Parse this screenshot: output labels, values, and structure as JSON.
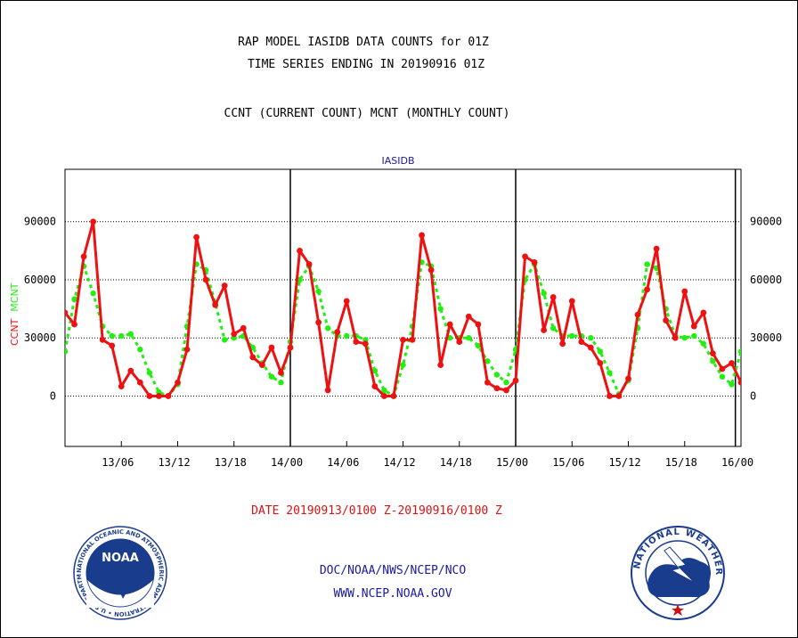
{
  "header": {
    "line1": "RAP MODEL IASIDB DATA COUNTS for 01Z",
    "line2": "TIME SERIES ENDING IN 20190916 01Z",
    "line3": "CCNT (CURRENT COUNT) MCNT (MONTHLY COUNT)"
  },
  "footer": {
    "date_range": "DATE 20190913/0100 Z-20190916/0100 Z",
    "org": "DOC/NOAA/NWS/NCEP/NCO",
    "url": "WWW.NCEP.NOAA.GOV"
  },
  "logos": {
    "noaa_text": "NOAA",
    "noaa_ring_text": "NATIONAL OCEANIC AND ATMOSPHERIC ADMINISTRATION • U.S. DEPARTMENT OF COMMERCE •",
    "nws_ring_text": "NATIONAL WEATHER SERVICE"
  },
  "colors": {
    "ccnt": "#ee1111",
    "mcnt": "#22ee11",
    "title_blue": "#1a1aa0",
    "date_red": "#dd1111"
  },
  "chart_data": {
    "type": "line",
    "title": "IASIDB",
    "ylabel_left": [
      "CCNT",
      "MCNT"
    ],
    "yticks": [
      0,
      30000,
      60000,
      90000
    ],
    "ytick_labels": [
      "0",
      "30000",
      "60000",
      "90000"
    ],
    "ylim": [
      -26000,
      117000
    ],
    "x_unit": "hours since 13/00",
    "xlim": [
      0,
      72
    ],
    "xticks": [
      6,
      12,
      18,
      24,
      30,
      36,
      42,
      48,
      54,
      60,
      66,
      72
    ],
    "xtick_labels": [
      "13/06",
      "13/12",
      "13/18",
      "14/00",
      "14/06",
      "14/12",
      "14/18",
      "15/00",
      "15/06",
      "15/12",
      "15/18",
      "16/00"
    ],
    "day_boundaries": [
      24,
      48,
      71.4
    ],
    "grid": true,
    "series": [
      {
        "name": "CCNT",
        "color": "#ee1111",
        "x": [
          0,
          1,
          2,
          3,
          4,
          5,
          6,
          7,
          8,
          9,
          10,
          11,
          12,
          13,
          14,
          15,
          16,
          17,
          18,
          19,
          20,
          21,
          22,
          23,
          24,
          25,
          26,
          27,
          28,
          29,
          30,
          31,
          32,
          33,
          34,
          35,
          36,
          37,
          38,
          39,
          40,
          41,
          42,
          43,
          44,
          45,
          46,
          47,
          48,
          49,
          50,
          51,
          52,
          53,
          54,
          55,
          56,
          57,
          58,
          59,
          60,
          61,
          62,
          63,
          64,
          65,
          66,
          67,
          68,
          69,
          70,
          71,
          72
        ],
        "values": [
          43000,
          37000,
          72000,
          90000,
          29000,
          26000,
          5000,
          13000,
          7000,
          0,
          0,
          0,
          7000,
          24000,
          82000,
          60000,
          47000,
          57000,
          32000,
          35000,
          20000,
          16000,
          25000,
          12000,
          25000,
          75000,
          68000,
          38000,
          3000,
          33000,
          49000,
          28000,
          27000,
          5000,
          0,
          0,
          29000,
          29000,
          83000,
          65000,
          16000,
          37000,
          28000,
          41000,
          37000,
          7000,
          4000,
          3000,
          8000,
          72000,
          69000,
          34000,
          51000,
          27000,
          49000,
          28000,
          25000,
          17000,
          0,
          0,
          9000,
          42000,
          55000,
          76000,
          39000,
          30000,
          54000,
          36000,
          43000,
          22000,
          14000,
          17000,
          7000
        ]
      },
      {
        "name": "MCNT",
        "color": "#22ee11",
        "x": [
          0,
          1,
          2,
          3,
          4,
          5,
          6,
          7,
          8,
          9,
          10,
          11,
          12,
          13,
          14,
          15,
          16,
          17,
          18,
          19,
          20,
          21,
          22,
          23,
          24,
          25,
          26,
          27,
          28,
          29,
          30,
          31,
          32,
          33,
          34,
          35,
          36,
          37,
          38,
          39,
          40,
          41,
          42,
          43,
          44,
          45,
          46,
          47,
          48,
          49,
          50,
          51,
          52,
          53,
          54,
          55,
          56,
          57,
          58,
          59,
          60,
          61,
          62,
          63,
          64,
          65,
          66,
          67,
          68,
          69,
          70,
          71,
          72
        ],
        "values": [
          23000,
          50000,
          67000,
          53000,
          36000,
          31000,
          31000,
          32000,
          24000,
          12000,
          2000,
          0,
          6000,
          36000,
          68000,
          65000,
          48000,
          29000,
          30000,
          31000,
          25000,
          17000,
          10000,
          7000,
          28000,
          60000,
          67000,
          54000,
          35000,
          31000,
          31000,
          31000,
          29000,
          13000,
          3000,
          0,
          16000,
          36000,
          69000,
          67000,
          45000,
          30000,
          30000,
          30000,
          26000,
          18000,
          11000,
          7000,
          24000,
          60000,
          68000,
          53000,
          35000,
          31000,
          31000,
          31000,
          30000,
          23000,
          12000,
          1000,
          8000,
          35000,
          68000,
          66000,
          45000,
          31000,
          30000,
          31000,
          27000,
          18000,
          10000,
          6000,
          23000
        ]
      }
    ]
  }
}
